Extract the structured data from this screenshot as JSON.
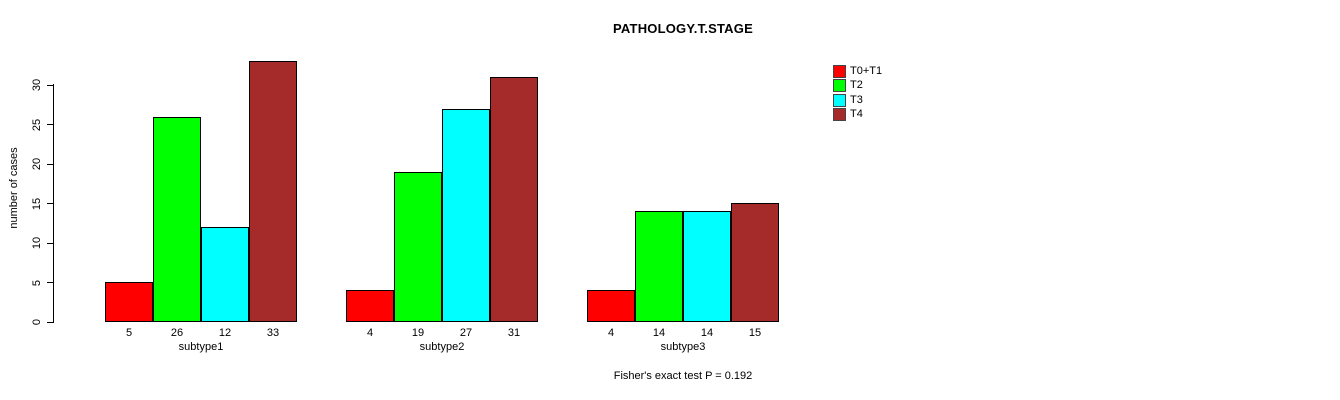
{
  "title": "PATHOLOGY.T.STAGE",
  "y_axis": {
    "label": "number of cases",
    "ticks": [
      0,
      5,
      10,
      15,
      20,
      25,
      30
    ]
  },
  "legend": {
    "items": [
      {
        "label": "T0+T1",
        "color": "#ff0000"
      },
      {
        "label": "T2",
        "color": "#00ff00"
      },
      {
        "label": "T3",
        "color": "#00ffff"
      },
      {
        "label": "T4",
        "color": "#a52a2a"
      }
    ]
  },
  "footer": {
    "text": "Fisher's exact test P = 0.192"
  },
  "chart_data": {
    "type": "bar",
    "title": "PATHOLOGY.T.STAGE",
    "categories": [
      "subtype1",
      "subtype2",
      "subtype3"
    ],
    "series": [
      {
        "name": "T0+T1",
        "color": "#ff0000",
        "values": [
          5,
          4,
          4
        ]
      },
      {
        "name": "T2",
        "color": "#00ff00",
        "values": [
          26,
          19,
          14
        ]
      },
      {
        "name": "T3",
        "color": "#00ffff",
        "values": [
          12,
          27,
          14
        ]
      },
      {
        "name": "T4",
        "color": "#a52a2a",
        "values": [
          33,
          31,
          15
        ]
      }
    ],
    "xlabel": "",
    "ylabel": "number of cases",
    "ylim": [
      0,
      33
    ],
    "yticks": [
      0,
      5,
      10,
      15,
      20,
      25,
      30
    ],
    "grid": false,
    "bar_value_labels": true,
    "legend_position": "right",
    "annotation": "Fisher's exact test P = 0.192"
  }
}
